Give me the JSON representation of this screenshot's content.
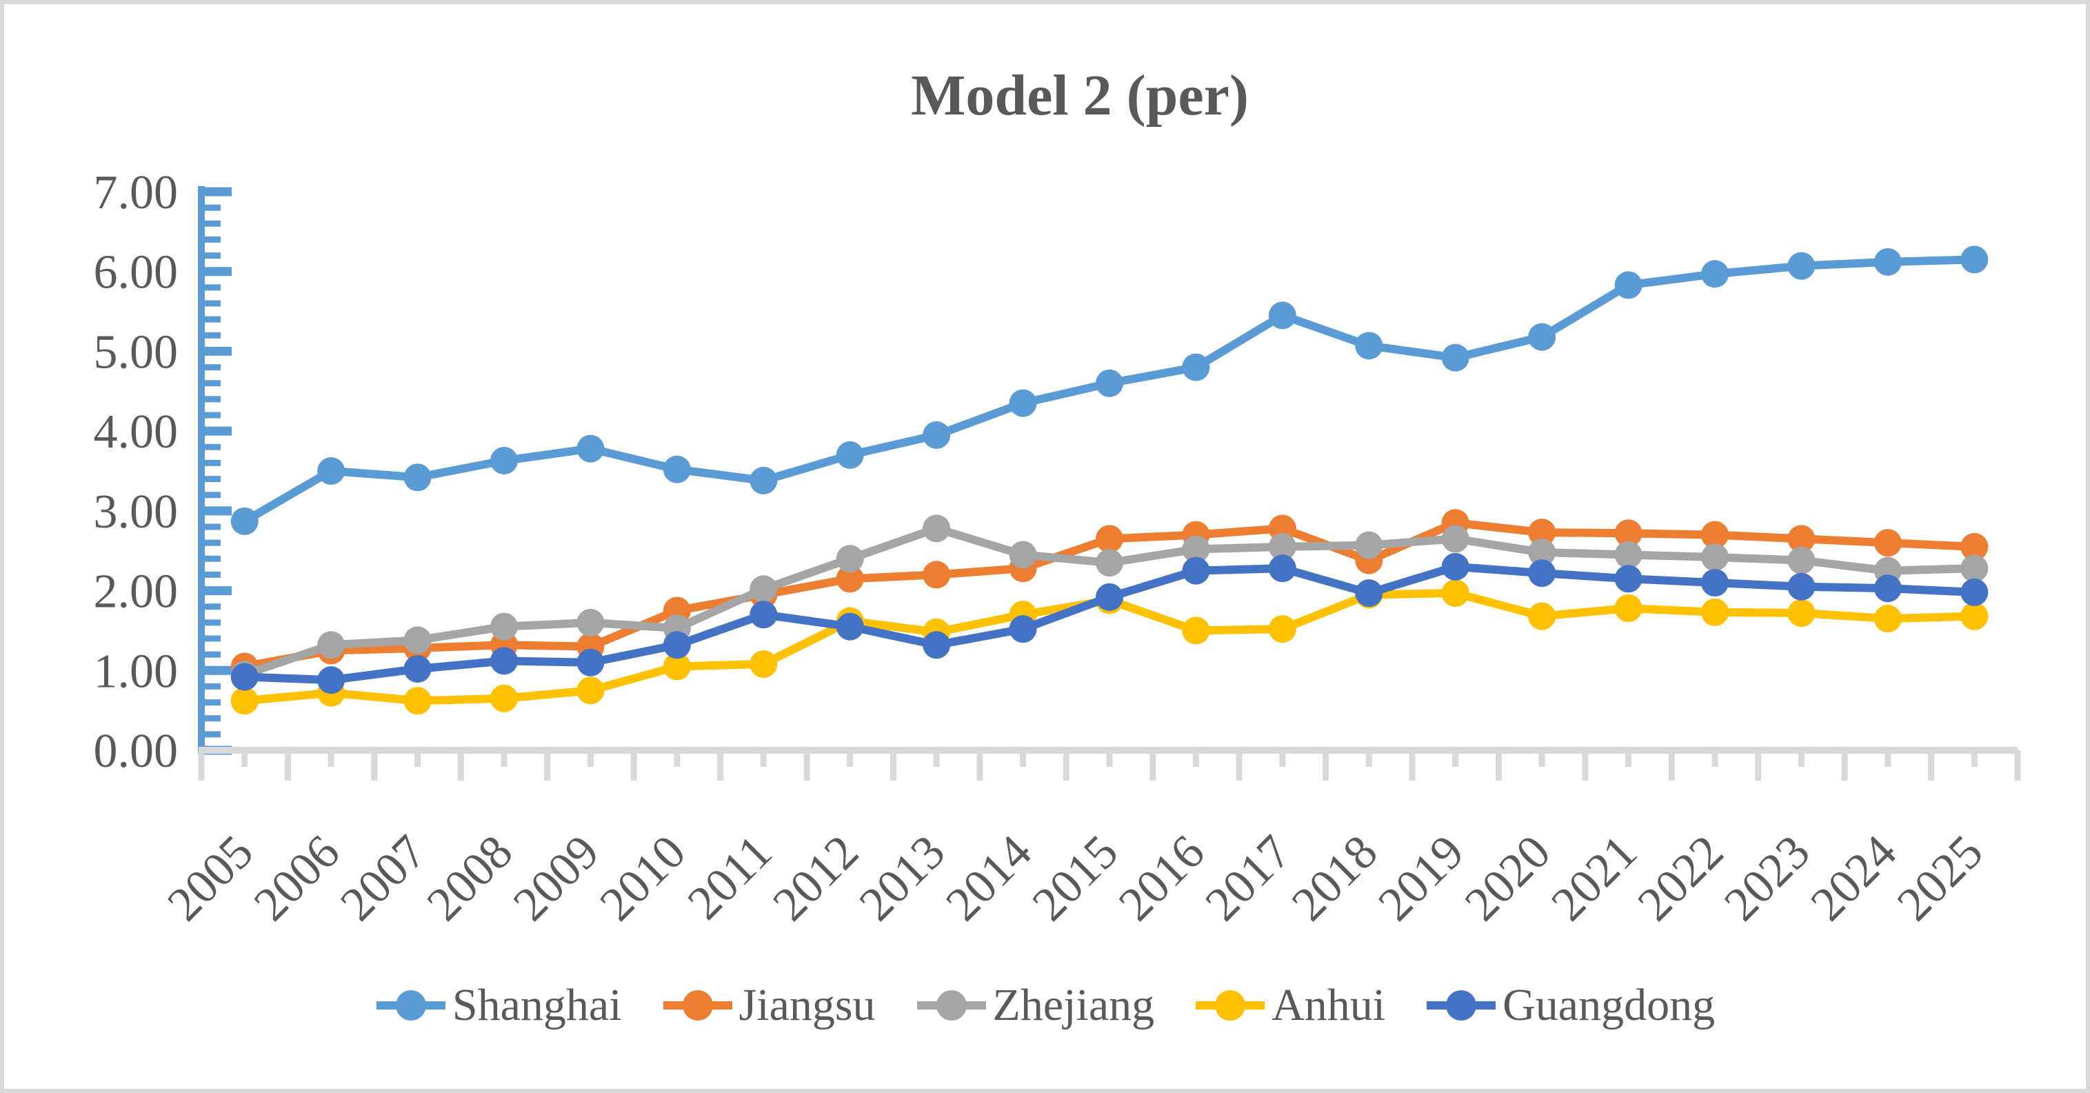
{
  "chart_window": {
    "background": "#ffffff",
    "border_color": "#d9d9d9"
  },
  "chart_data": {
    "type": "line",
    "title": "Model 2 (per)",
    "title_color": "#595959",
    "xlabel": "",
    "ylabel": "",
    "categories": [
      2005,
      2006,
      2007,
      2008,
      2009,
      2010,
      2011,
      2012,
      2013,
      2014,
      2015,
      2016,
      2017,
      2018,
      2019,
      2020,
      2021,
      2022,
      2023,
      2024,
      2025
    ],
    "series": [
      {
        "name": "Shanghai",
        "color": "#5B9BD5",
        "values": [
          2.87,
          3.5,
          3.42,
          3.63,
          3.78,
          3.52,
          3.38,
          3.7,
          3.95,
          4.35,
          4.6,
          4.8,
          5.45,
          5.07,
          4.92,
          5.18,
          5.83,
          5.97,
          6.07,
          6.12,
          6.15
        ]
      },
      {
        "name": "Jiangsu",
        "color": "#ED7D31",
        "values": [
          1.05,
          1.25,
          1.28,
          1.32,
          1.3,
          1.75,
          1.95,
          2.15,
          2.2,
          2.28,
          2.65,
          2.7,
          2.78,
          2.38,
          2.85,
          2.73,
          2.72,
          2.7,
          2.65,
          2.6,
          2.55
        ]
      },
      {
        "name": "Zhejiang",
        "color": "#A5A5A5",
        "values": [
          0.95,
          1.32,
          1.38,
          1.55,
          1.6,
          1.53,
          2.02,
          2.4,
          2.78,
          2.45,
          2.35,
          2.52,
          2.55,
          2.57,
          2.65,
          2.48,
          2.45,
          2.42,
          2.38,
          2.25,
          2.28
        ]
      },
      {
        "name": "Anhui",
        "color": "#FFC000",
        "values": [
          0.62,
          0.72,
          0.62,
          0.65,
          0.75,
          1.05,
          1.08,
          1.62,
          1.48,
          1.7,
          1.88,
          1.5,
          1.52,
          1.95,
          1.97,
          1.68,
          1.78,
          1.73,
          1.72,
          1.65,
          1.68
        ]
      },
      {
        "name": "Guangdong",
        "color": "#4472C4",
        "values": [
          0.92,
          0.88,
          1.02,
          1.12,
          1.1,
          1.32,
          1.7,
          1.55,
          1.32,
          1.52,
          1.92,
          2.25,
          2.28,
          1.97,
          2.3,
          2.22,
          2.15,
          2.1,
          2.05,
          2.03,
          1.98
        ]
      }
    ],
    "ylim": [
      0,
      7
    ],
    "y_major_unit": 1.0,
    "y_minor_unit": 0.2,
    "y_tick_label_format": "0.00",
    "grid": false,
    "legend_position": "bottom",
    "y_axis_color": "#5B9BD5",
    "x_axis_color": "#D9D9D9",
    "tick_label_color": "#595959",
    "x_label_rotation_deg": -45
  }
}
